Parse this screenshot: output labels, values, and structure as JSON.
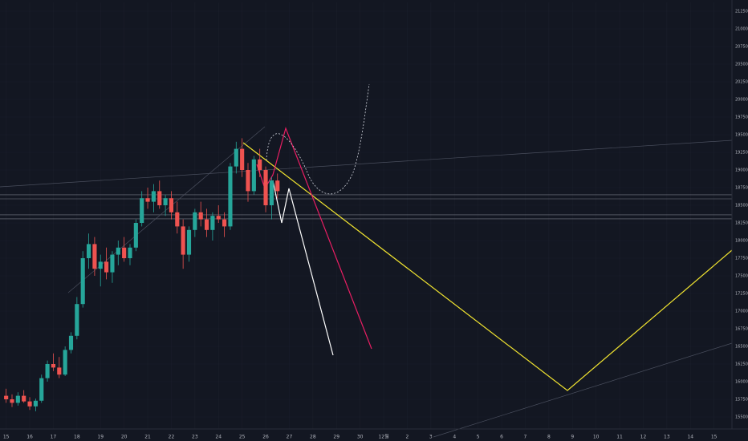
{
  "chart_data": {
    "type": "candlestick",
    "x": [
      15,
      15.25,
      15.5,
      15.75,
      16,
      16.25,
      16.5,
      16.75,
      17,
      17.25,
      17.5,
      17.75,
      18,
      18.25,
      18.5,
      18.75,
      19,
      19.25,
      19.5,
      19.75,
      20,
      20.25,
      20.5,
      20.75,
      21,
      21.25,
      21.5,
      21.75,
      22,
      22.25,
      22.5,
      22.75,
      23,
      23.25,
      23.5,
      23.75,
      24,
      24.25,
      24.5,
      24.75,
      25,
      25.25,
      25.5,
      25.75,
      26,
      26.25,
      26.5
    ],
    "open": [
      15800,
      15750,
      15700,
      15800,
      15720,
      15650,
      15730,
      16050,
      16250,
      16200,
      16100,
      16450,
      16650,
      17100,
      17750,
      17950,
      17600,
      17700,
      17550,
      17800,
      17900,
      17750,
      17900,
      18250,
      18600,
      18550,
      18700,
      18500,
      18600,
      18400,
      18200,
      17800,
      18150,
      18400,
      18300,
      18150,
      18350,
      18300,
      18200,
      19050,
      19300,
      19000,
      18700,
      19150,
      19000,
      18500,
      18850
    ],
    "high": [
      15900,
      15820,
      15850,
      15880,
      15780,
      15760,
      16100,
      16300,
      16400,
      16350,
      16500,
      16700,
      17200,
      17850,
      18100,
      18050,
      17800,
      17900,
      17850,
      18000,
      18050,
      17950,
      18300,
      18700,
      18750,
      18800,
      18850,
      18650,
      18700,
      18550,
      18300,
      18200,
      18450,
      18550,
      18450,
      18400,
      18500,
      18400,
      19100,
      19400,
      19450,
      19100,
      19200,
      19300,
      19050,
      18900,
      18950
    ],
    "low": [
      15700,
      15640,
      15660,
      15700,
      15600,
      15580,
      15700,
      16000,
      16150,
      16050,
      16080,
      16400,
      16600,
      17050,
      17600,
      17500,
      17350,
      17450,
      17400,
      17650,
      17700,
      17650,
      17850,
      18200,
      18450,
      18400,
      18450,
      18350,
      18300,
      18100,
      17600,
      17700,
      18050,
      18200,
      18050,
      18000,
      18250,
      18050,
      18150,
      18950,
      18900,
      18550,
      18650,
      18900,
      18400,
      18300,
      18600
    ],
    "close": [
      15750,
      15700,
      15800,
      15720,
      15650,
      15730,
      16050,
      16250,
      16200,
      16100,
      16450,
      16650,
      17100,
      17750,
      17950,
      17600,
      17700,
      17550,
      17800,
      17900,
      17750,
      17900,
      18250,
      18600,
      18550,
      18700,
      18500,
      18600,
      18400,
      18200,
      17800,
      18150,
      18400,
      18300,
      18150,
      18350,
      18300,
      18200,
      19050,
      19300,
      19000,
      18700,
      19150,
      19000,
      18500,
      18850,
      18700
    ],
    "up_color": "#26a69a",
    "down_color": "#ef5350",
    "xlim": [
      14.74,
      45.76
    ],
    "xticks": [
      15,
      16,
      17,
      18,
      19,
      20,
      21,
      22,
      23,
      24,
      25,
      26,
      27,
      28,
      29,
      30,
      {
        "value": 31,
        "label": "12월"
      },
      {
        "value": 32,
        "label": "2"
      },
      {
        "value": 33,
        "label": "3"
      },
      {
        "value": 34,
        "label": "4"
      },
      {
        "value": 35,
        "label": "5"
      },
      {
        "value": 36,
        "label": "6"
      },
      {
        "value": 37,
        "label": "7"
      },
      {
        "value": 38,
        "label": "8"
      },
      {
        "value": 39,
        "label": "9"
      },
      {
        "value": 40,
        "label": "10"
      },
      {
        "value": 41,
        "label": "11"
      },
      {
        "value": 42,
        "label": "12"
      },
      {
        "value": 43,
        "label": "13"
      },
      {
        "value": 44,
        "label": "14"
      },
      {
        "value": 45,
        "label": "15"
      }
    ],
    "ylim": [
      15375,
      21375
    ],
    "yticks": [
      {
        "value": 15500,
        "label": "15500.00"
      },
      {
        "value": 15750,
        "label": "15750.00"
      },
      {
        "value": 16000,
        "label": "16000.00"
      },
      {
        "value": 16250,
        "label": "16250.00"
      },
      {
        "value": 16500,
        "label": "16500.00"
      },
      {
        "value": 16750,
        "label": "16750.00"
      },
      {
        "value": 17000,
        "label": "17000.00"
      },
      {
        "value": 17250,
        "label": "17250.00"
      },
      {
        "value": 17500,
        "label": "17500.00"
      },
      {
        "value": 17750,
        "label": "17750.00"
      },
      {
        "value": 18000,
        "label": "18000.00"
      },
      {
        "value": 18250,
        "label": "18250.00"
      },
      {
        "value": 18500,
        "label": "18500.00"
      },
      {
        "value": 18750,
        "label": "18750.00"
      },
      {
        "value": 19000,
        "label": "19000.00"
      },
      {
        "value": 19250,
        "label": "19250.00"
      },
      {
        "value": 19500,
        "label": "19500.00"
      },
      {
        "value": 19750,
        "label": "19750.00"
      },
      {
        "value": 20000,
        "label": "20000.00"
      },
      {
        "value": 20250,
        "label": "20250.00"
      },
      {
        "value": 20500,
        "label": "20500.00"
      },
      {
        "value": 20750,
        "label": "20750.00"
      },
      {
        "value": 21000,
        "label": "21000.00"
      },
      {
        "value": 21250,
        "label": "21250.00"
      }
    ],
    "levels": [
      18648,
      18591,
      18364,
      18307
    ],
    "grid": true
  }
}
